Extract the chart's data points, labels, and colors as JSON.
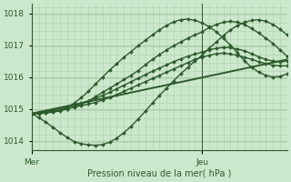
{
  "bg_color": "#cce8cc",
  "grid_color": "#aacfaa",
  "line_color": "#2d5a2d",
  "axis_label": "Pression niveau de la mer( hPa )",
  "xtick_labels": [
    "Mer",
    "Jeu"
  ],
  "xtick_positions": [
    0,
    24
  ],
  "ylim": [
    1013.7,
    1018.3
  ],
  "yticks": [
    1014,
    1015,
    1016,
    1017,
    1018
  ],
  "xlim": [
    0,
    36
  ],
  "total_hours": 36,
  "series": [
    {
      "x": [
        0,
        1,
        2,
        3,
        4,
        5,
        6,
        7,
        8,
        9,
        10,
        11,
        12,
        13,
        14,
        15,
        16,
        17,
        18,
        19,
        20,
        21,
        22,
        23,
        24,
        25,
        26,
        27,
        28,
        29,
        30,
        31,
        32,
        33,
        34,
        35,
        36
      ],
      "y": [
        1014.85,
        1014.87,
        1014.9,
        1014.92,
        1014.95,
        1015.0,
        1015.05,
        1015.1,
        1015.15,
        1015.2,
        1015.28,
        1015.35,
        1015.45,
        1015.55,
        1015.65,
        1015.75,
        1015.85,
        1015.95,
        1016.05,
        1016.15,
        1016.25,
        1016.35,
        1016.45,
        1016.55,
        1016.62,
        1016.68,
        1016.73,
        1016.75,
        1016.72,
        1016.68,
        1016.62,
        1016.55,
        1016.48,
        1016.42,
        1016.37,
        1016.35,
        1016.35
      ],
      "marker": true,
      "lw": 1.0
    },
    {
      "x": [
        0,
        1,
        2,
        3,
        4,
        5,
        6,
        7,
        8,
        9,
        10,
        11,
        12,
        13,
        14,
        15,
        16,
        17,
        18,
        19,
        20,
        21,
        22,
        23,
        24,
        25,
        26,
        27,
        28,
        29,
        30,
        31,
        32,
        33,
        34,
        35,
        36
      ],
      "y": [
        1014.85,
        1014.88,
        1014.92,
        1014.96,
        1015.0,
        1015.05,
        1015.12,
        1015.18,
        1015.25,
        1015.33,
        1015.42,
        1015.52,
        1015.63,
        1015.74,
        1015.85,
        1015.96,
        1016.07,
        1016.18,
        1016.28,
        1016.38,
        1016.48,
        1016.57,
        1016.65,
        1016.72,
        1016.78,
        1016.85,
        1016.9,
        1016.93,
        1016.92,
        1016.88,
        1016.82,
        1016.73,
        1016.63,
        1016.55,
        1016.5,
        1016.48,
        1016.5
      ],
      "marker": true,
      "lw": 1.0
    },
    {
      "x": [
        0,
        1,
        2,
        3,
        4,
        5,
        6,
        7,
        8,
        9,
        10,
        11,
        12,
        13,
        14,
        15,
        16,
        17,
        18,
        19,
        20,
        21,
        22,
        23,
        24,
        25,
        26,
        27,
        28,
        29,
        30,
        31,
        32,
        33,
        34,
        35,
        36
      ],
      "y": [
        1014.85,
        1014.85,
        1014.87,
        1014.9,
        1014.93,
        1015.0,
        1015.07,
        1015.15,
        1015.25,
        1015.38,
        1015.52,
        1015.65,
        1015.78,
        1015.92,
        1016.05,
        1016.2,
        1016.38,
        1016.55,
        1016.7,
        1016.85,
        1016.98,
        1017.1,
        1017.22,
        1017.32,
        1017.42,
        1017.55,
        1017.65,
        1017.72,
        1017.75,
        1017.72,
        1017.65,
        1017.52,
        1017.38,
        1017.22,
        1017.05,
        1016.85,
        1016.65
      ],
      "marker": true,
      "lw": 1.0
    },
    {
      "x": [
        0,
        36
      ],
      "y": [
        1014.85,
        1016.55
      ],
      "marker": false,
      "lw": 1.4
    },
    {
      "x": [
        0,
        1,
        2,
        3,
        4,
        5,
        6,
        7,
        8,
        9,
        10,
        11,
        12,
        13,
        14,
        15,
        16,
        17,
        18,
        19,
        20,
        21,
        22,
        23,
        24,
        25,
        26,
        27,
        28,
        29,
        30,
        31,
        32,
        33,
        34,
        35,
        36
      ],
      "y": [
        1014.85,
        1014.72,
        1014.58,
        1014.42,
        1014.25,
        1014.1,
        1013.97,
        1013.9,
        1013.87,
        1013.85,
        1013.88,
        1013.95,
        1014.08,
        1014.25,
        1014.45,
        1014.68,
        1014.92,
        1015.18,
        1015.42,
        1015.65,
        1015.88,
        1016.1,
        1016.3,
        1016.5,
        1016.68,
        1016.9,
        1017.1,
        1017.3,
        1017.48,
        1017.62,
        1017.72,
        1017.78,
        1017.8,
        1017.75,
        1017.65,
        1017.5,
        1017.32
      ],
      "marker": true,
      "lw": 1.0
    },
    {
      "x": [
        0,
        1,
        2,
        3,
        4,
        5,
        6,
        7,
        8,
        9,
        10,
        11,
        12,
        13,
        14,
        15,
        16,
        17,
        18,
        19,
        20,
        21,
        22,
        23,
        24,
        25,
        26,
        27,
        28,
        29,
        30,
        31,
        32,
        33,
        34,
        35,
        36
      ],
      "y": [
        1014.85,
        1014.85,
        1014.87,
        1014.9,
        1014.95,
        1015.05,
        1015.18,
        1015.35,
        1015.55,
        1015.78,
        1016.0,
        1016.22,
        1016.42,
        1016.62,
        1016.8,
        1016.98,
        1017.15,
        1017.32,
        1017.48,
        1017.62,
        1017.73,
        1017.8,
        1017.82,
        1017.78,
        1017.7,
        1017.58,
        1017.42,
        1017.22,
        1017.0,
        1016.75,
        1016.5,
        1016.3,
        1016.15,
        1016.05,
        1016.0,
        1016.02,
        1016.1
      ],
      "marker": true,
      "lw": 1.0
    }
  ],
  "vlines": [
    0,
    24
  ],
  "figsize": [
    3.2,
    2.0
  ],
  "dpi": 100
}
